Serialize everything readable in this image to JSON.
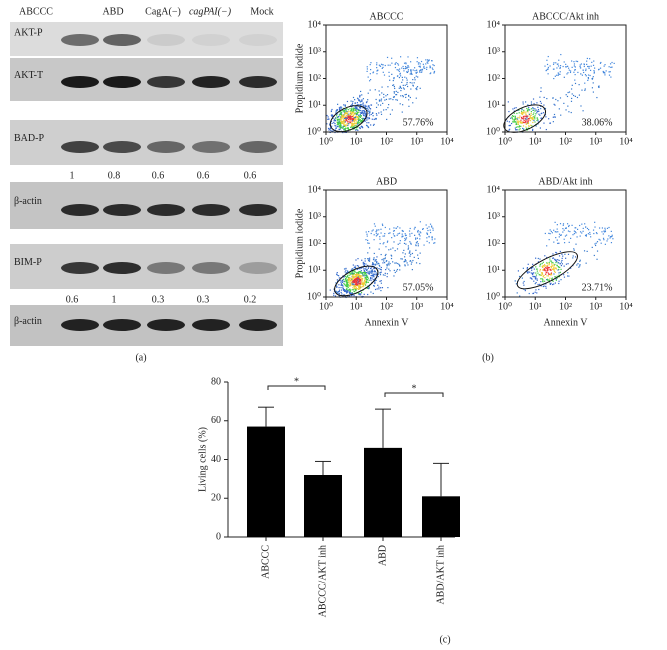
{
  "panel_a": {
    "label": "(a)",
    "lanes": [
      "ABCCC",
      "ABD",
      "CagA(−)",
      "cagPAI(−)",
      "Mock"
    ],
    "blots": [
      {
        "name": "AKT-P"
      },
      {
        "name": "AKT-T"
      },
      {
        "name": "BAD-P",
        "ratios": [
          1,
          0.8,
          0.6,
          0.6,
          0.6
        ]
      },
      {
        "name": "β-actin"
      },
      {
        "name": "BIM-P",
        "ratios": [
          0.6,
          1,
          0.3,
          0.3,
          0.2
        ]
      },
      {
        "name": "β-actin"
      }
    ]
  },
  "panel_b": {
    "label": "(b)",
    "y_label": "Propidium iodide",
    "x_label": "Annexin V",
    "ticks": [
      {
        "value": 1,
        "label": "10⁰"
      },
      {
        "value": 10,
        "label": "10¹"
      },
      {
        "value": 100,
        "label": "10²"
      },
      {
        "value": 1000,
        "label": "10³"
      },
      {
        "value": 10000,
        "label": "10⁴"
      }
    ],
    "plots": [
      {
        "title": "ABCCC",
        "percent": "57.76%"
      },
      {
        "title": "ABCCC/Akt inh",
        "percent": "38.06%"
      },
      {
        "title": "ABD",
        "percent": "57.05%"
      },
      {
        "title": "ABD/Akt inh",
        "percent": "23.71%"
      }
    ]
  },
  "chart_data": {
    "type": "bar",
    "label": "(c)",
    "y_label": "Living cells (%)",
    "categories": [
      "ABCCC",
      "ABCCC/AKT inh",
      "ABD",
      "ABD/AKT inh"
    ],
    "values": [
      57,
      32,
      46,
      21
    ],
    "errors": [
      10,
      7,
      20,
      17
    ],
    "color": "#000000",
    "ylim": [
      0,
      80
    ],
    "yticks": [
      0,
      20,
      40,
      60,
      80
    ],
    "annotations": [
      "*",
      "*"
    ]
  }
}
